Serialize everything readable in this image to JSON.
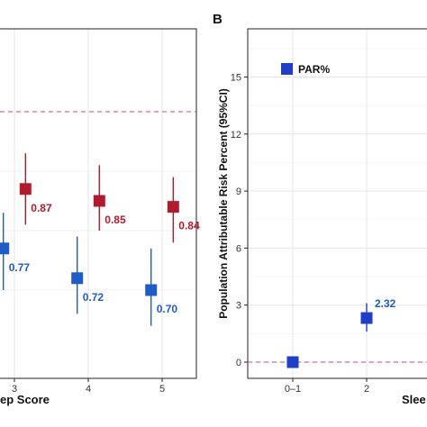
{
  "chart_data": [
    {
      "panel_letter": "",
      "type": "scatter",
      "xlabel": "ep Score",
      "x_ticks": [
        "3",
        "4",
        "5"
      ],
      "grid": true,
      "reference_line": 1.0,
      "series": [
        {
          "color": "#b01c2e",
          "points": [
            {
              "x": 3.15,
              "y": 0.87,
              "lo": 0.81,
              "hi": 0.93,
              "label": "0.87"
            },
            {
              "x": 4.15,
              "y": 0.85,
              "lo": 0.8,
              "hi": 0.91,
              "label": "0.85"
            },
            {
              "x": 5.15,
              "y": 0.84,
              "lo": 0.78,
              "hi": 0.89,
              "label": "0.84"
            }
          ]
        },
        {
          "color": "#1f5cc5",
          "points": [
            {
              "x": 2.85,
              "y": 0.77,
              "lo": 0.7,
              "hi": 0.83,
              "label": "0.77"
            },
            {
              "x": 3.85,
              "y": 0.72,
              "lo": 0.66,
              "hi": 0.79,
              "label": "0.72"
            },
            {
              "x": 4.85,
              "y": 0.7,
              "lo": 0.64,
              "hi": 0.77,
              "label": "0.70"
            }
          ]
        }
      ]
    },
    {
      "panel_letter": "B",
      "type": "scatter",
      "ylabel": "Population Attributable Risk Percent (95%CI)",
      "xlabel": "Slee",
      "x_categories": [
        "0–1",
        "2"
      ],
      "y_ticks": [
        0,
        3,
        6,
        9,
        12,
        15
      ],
      "ylim": [
        -0.8,
        17
      ],
      "grid": true,
      "reference_line": 0,
      "legend": {
        "label": "PAR%",
        "placement": "top-left",
        "color": "#1f3fc8"
      },
      "series": [
        {
          "name": "PAR%",
          "color": "#1f3fc8",
          "label_color": "#1f5cc5",
          "points": [
            {
              "x": "0–1",
              "y": 0,
              "lo": null,
              "hi": null,
              "label": ""
            },
            {
              "x": "2",
              "y": 2.32,
              "lo": 1.6,
              "hi": 3.1,
              "label": "2.32"
            }
          ]
        }
      ]
    }
  ]
}
